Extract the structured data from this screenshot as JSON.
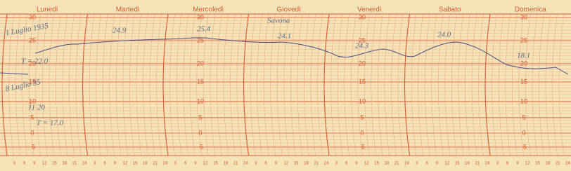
{
  "header": {
    "days": [
      "Lunedì",
      "Martedì",
      "Mercoledì",
      "Giovedì",
      "Venerdì",
      "Sabato",
      "Domenica"
    ]
  },
  "scale": {
    "labels": [
      "30",
      "25",
      "20",
      "15",
      "10",
      "5",
      "0",
      "-5"
    ]
  },
  "hours": [
    "3",
    "6",
    "9",
    "12",
    "15",
    "18",
    "21",
    "24"
  ],
  "annotations": {
    "start_date": "1 Luglio 1935",
    "start_temp": "T = 22.0",
    "end_date": "8 Luglio 35",
    "end_time": "11 20",
    "end_temp": "T = 17.0",
    "place": "Savona",
    "readings": [
      "24.9",
      "25.4",
      "24.1",
      "24.3",
      "24.0",
      "18.1"
    ]
  }
}
